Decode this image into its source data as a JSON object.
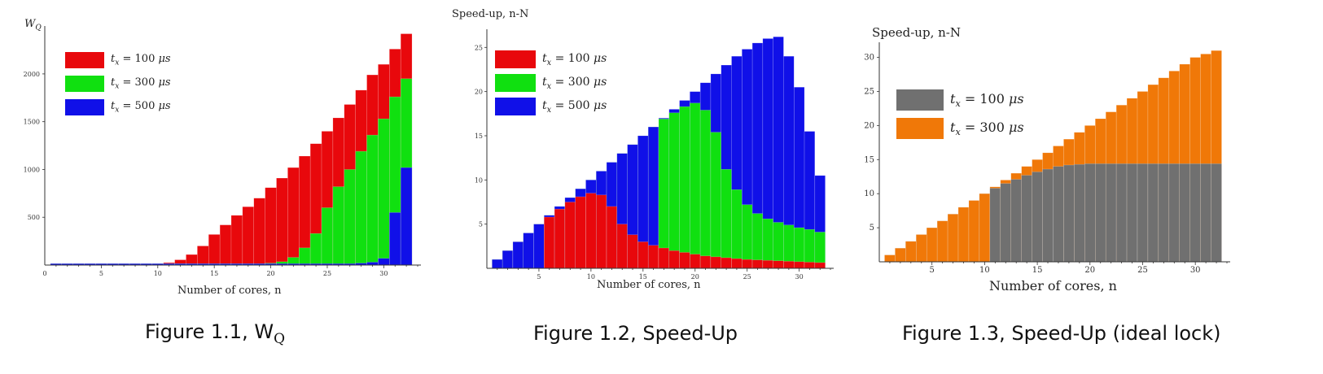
{
  "captions": {
    "fig1_prefix": "Figure 1.1,  W",
    "fig1_sub": "Q",
    "fig2": "Figure 1.2, Speed-Up",
    "fig3": "Figure 1.3, Speed-Up (ideal lock)"
  },
  "colors": {
    "red": "#e8080c",
    "green": "#10e010",
    "blue": "#1010e8",
    "gray": "#707070",
    "orange": "#f07808"
  },
  "legend_symbols": {
    "t": "t",
    "sub": "x",
    "unit": "μs"
  },
  "chart_data": [
    {
      "type": "bar",
      "title": "",
      "ylabel_main": "W",
      "ylabel_sub": "Q",
      "xlabel": "Number of cores, n",
      "xlim": [
        0,
        33
      ],
      "ylim": [
        0,
        2450
      ],
      "x_ticks": [
        0,
        5,
        10,
        15,
        20,
        25,
        30
      ],
      "y_ticks": [
        500,
        1000,
        1500,
        2000
      ],
      "legend": [
        {
          "name": "= 100",
          "color": "red"
        },
        {
          "name": "= 300",
          "color": "green"
        },
        {
          "name": "= 500",
          "color": "blue"
        }
      ],
      "series": [
        {
          "name": "t_x = 100 μs",
          "color": "red",
          "values": [
            15,
            15,
            15,
            15,
            15,
            15,
            15,
            15,
            15,
            15,
            25,
            55,
            110,
            200,
            320,
            420,
            520,
            610,
            700,
            810,
            910,
            1020,
            1140,
            1270,
            1400,
            1540,
            1680,
            1830,
            1990,
            2100,
            2260,
            2420
          ]
        },
        {
          "name": "t_x = 300 μs",
          "color": "green",
          "values": [
            15,
            15,
            15,
            15,
            15,
            15,
            15,
            15,
            15,
            15,
            15,
            15,
            15,
            15,
            15,
            15,
            15,
            15,
            15,
            20,
            35,
            80,
            180,
            330,
            600,
            820,
            1000,
            1190,
            1360,
            1530,
            1760,
            1950
          ]
        },
        {
          "name": "t_x = 500 μs",
          "color": "blue",
          "values": [
            15,
            15,
            15,
            15,
            15,
            15,
            15,
            15,
            15,
            15,
            15,
            15,
            15,
            15,
            15,
            15,
            15,
            15,
            15,
            15,
            15,
            15,
            15,
            15,
            15,
            15,
            15,
            20,
            30,
            70,
            550,
            1020
          ]
        }
      ]
    },
    {
      "type": "bar",
      "title": "",
      "ylabel": "Speed-up, n-N",
      "xlabel": "Number of cores, n",
      "xlim": [
        0,
        33
      ],
      "ylim": [
        0,
        26.5
      ],
      "x_ticks": [
        5,
        10,
        15,
        20,
        25,
        30
      ],
      "y_ticks": [
        5,
        10,
        15,
        20,
        25
      ],
      "legend": [
        {
          "name": "= 100",
          "color": "red"
        },
        {
          "name": "= 300",
          "color": "green"
        },
        {
          "name": "= 500",
          "color": "blue"
        }
      ],
      "series": [
        {
          "name": "t_x = 100 μs",
          "color": "red",
          "values": [
            1,
            2,
            3,
            4,
            5,
            5.8,
            6.7,
            7.5,
            8.1,
            8.5,
            8.3,
            7,
            5,
            3.8,
            3,
            2.6,
            2.3,
            2,
            1.8,
            1.6,
            1.4,
            1.3,
            1.2,
            1.1,
            1,
            0.95,
            0.9,
            0.85,
            0.8,
            0.75,
            0.7,
            0.65
          ]
        },
        {
          "name": "t_x = 300 μs",
          "color": "green",
          "values": [
            1,
            2,
            3,
            4,
            5,
            6,
            7,
            8,
            9,
            10,
            11,
            12,
            13,
            14,
            15,
            16,
            16.9,
            17.6,
            18.3,
            18.7,
            17.9,
            15.4,
            11.2,
            8.9,
            7.2,
            6.2,
            5.6,
            5.2,
            4.9,
            4.6,
            4.4,
            4.1
          ]
        },
        {
          "name": "t_x = 500 μs",
          "color": "blue",
          "values": [
            1,
            2,
            3,
            4,
            5,
            6,
            7,
            8,
            9,
            10,
            11,
            12,
            13,
            14,
            15,
            16,
            17,
            18,
            19,
            20,
            21,
            22,
            23,
            24,
            24.8,
            25.5,
            26,
            26.2,
            24,
            20.5,
            15.5,
            10.5
          ]
        }
      ]
    },
    {
      "type": "bar",
      "title": "",
      "ylabel": "Speed-up, n-N",
      "xlabel": "Number of cores, n",
      "xlim": [
        0,
        33
      ],
      "ylim": [
        0,
        31.5
      ],
      "x_ticks": [
        5,
        10,
        15,
        20,
        25,
        30
      ],
      "y_ticks": [
        5,
        10,
        15,
        20,
        25,
        30
      ],
      "legend": [
        {
          "name": "= 100",
          "color": "gray"
        },
        {
          "name": "= 300",
          "color": "orange"
        }
      ],
      "series": [
        {
          "name": "t_x = 100 μs",
          "color": "gray",
          "values": [
            1,
            2,
            3,
            4,
            5,
            6,
            7,
            8,
            9,
            10,
            10.8,
            11.5,
            12.1,
            12.7,
            13.2,
            13.6,
            14,
            14.2,
            14.3,
            14.4,
            14.4,
            14.4,
            14.4,
            14.4,
            14.4,
            14.4,
            14.4,
            14.4,
            14.4,
            14.4,
            14.4,
            14.4
          ]
        },
        {
          "name": "t_x = 300 μs",
          "color": "orange",
          "values": [
            1,
            2,
            3,
            4,
            5,
            6,
            7,
            8,
            9,
            10,
            11,
            12,
            13,
            14,
            15,
            16,
            17,
            18,
            19,
            20,
            21,
            22,
            23,
            24,
            25,
            26,
            27,
            28,
            29,
            30,
            30.5,
            31
          ]
        }
      ]
    }
  ]
}
